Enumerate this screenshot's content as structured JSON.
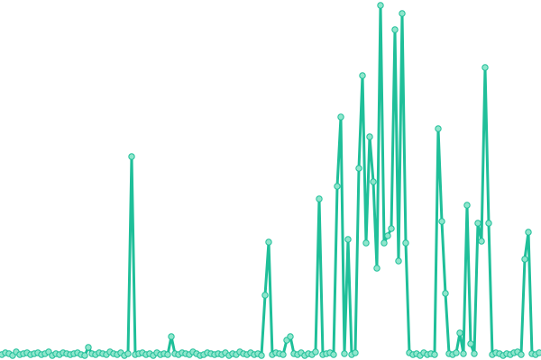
{
  "chart_data": {
    "type": "line",
    "series": [
      {
        "color": "#1fbf99",
        "values": [
          6,
          8,
          7,
          5,
          9,
          6,
          7,
          8,
          6,
          7,
          8,
          6,
          7,
          9,
          5,
          7,
          6,
          8,
          7,
          6,
          7,
          8,
          6,
          5,
          14,
          7,
          6,
          8,
          7,
          6,
          9,
          7,
          6,
          8,
          5,
          7,
          226,
          6,
          7,
          8,
          6,
          7,
          5,
          8,
          6,
          7,
          6,
          26,
          7,
          6,
          8,
          7,
          6,
          9,
          7,
          5,
          6,
          8,
          7,
          6,
          7,
          6,
          8,
          5,
          7,
          6,
          9,
          7,
          6,
          8,
          6,
          7,
          5,
          72,
          131,
          6,
          8,
          7,
          6,
          22,
          26,
          7,
          6,
          8,
          5,
          7,
          6,
          9,
          179,
          6,
          7,
          8,
          6,
          193,
          270,
          7,
          134,
          6,
          8,
          213,
          316,
          130,
          248,
          198,
          102,
          394,
          130,
          138,
          146,
          367,
          110,
          385,
          130,
          8,
          6,
          7,
          5,
          8,
          6,
          7,
          6,
          257,
          154,
          74,
          7,
          6,
          8,
          30,
          7,
          172,
          18,
          7,
          152,
          132,
          325,
          152,
          6,
          8,
          7,
          5,
          7,
          6,
          8,
          9,
          6,
          112,
          142,
          7,
          6,
          8
        ]
      }
    ],
    "ylim": [
      0,
      400
    ]
  }
}
